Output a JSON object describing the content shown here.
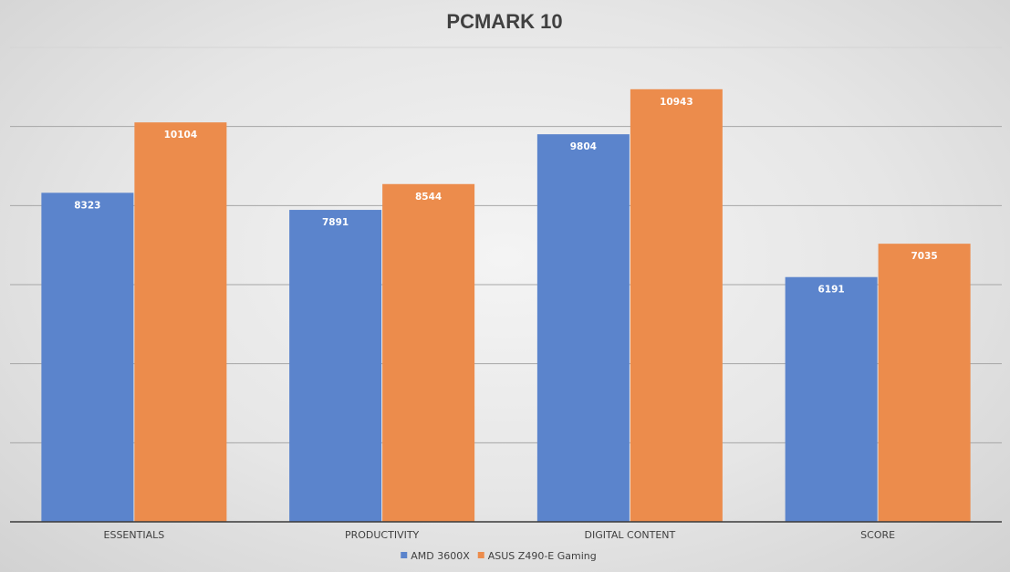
{
  "chart_data": {
    "type": "bar",
    "title": "PCMARK 10",
    "categories": [
      "ESSENTIALS",
      "PRODUCTIVITY",
      "DIGITAL CONTENT",
      "SCORE"
    ],
    "series": [
      {
        "name": "AMD 3600X",
        "color": "#5b84cc",
        "values": [
          8323,
          7891,
          9804,
          6191
        ]
      },
      {
        "name": "ASUS Z490-E Gaming",
        "color": "#ec8c4c",
        "values": [
          10104,
          8544,
          10943,
          7035
        ]
      }
    ],
    "ylim": [
      0,
      12000
    ],
    "gridlines": [
      2000,
      4000,
      6000,
      8000,
      10000,
      12000
    ],
    "grid": true,
    "y_tick_labels_shown": false,
    "legend_position": "bottom",
    "data_labels": true,
    "xlabel": "",
    "ylabel": ""
  }
}
